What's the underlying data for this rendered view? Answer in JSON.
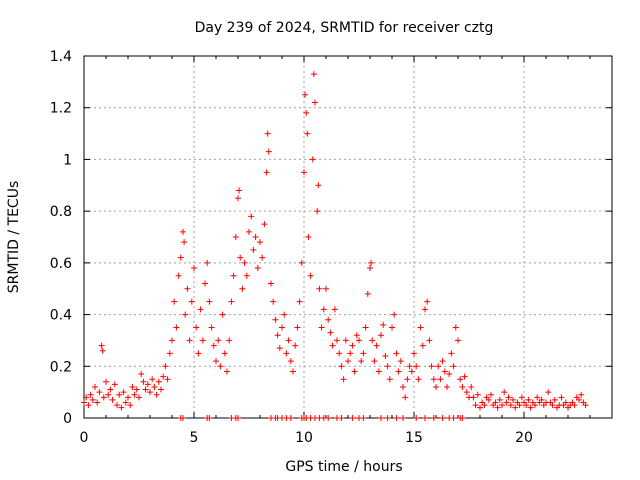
{
  "chart_data": {
    "type": "scatter",
    "title": "Day 239 of 2024, SRMTID for receiver cztg",
    "xlabel": "GPS time / hours",
    "ylabel": "SRMTID / TECUs",
    "xlim": [
      0,
      24
    ],
    "ylim": [
      0,
      1.4
    ],
    "xticks": [
      0,
      5,
      10,
      15,
      20
    ],
    "xtick_labels": [
      "0",
      "5",
      "10",
      "15",
      "20"
    ],
    "yticks": [
      0,
      0.2,
      0.4,
      0.6,
      0.8,
      1.0,
      1.2,
      1.4
    ],
    "ytick_labels": [
      "0",
      "0.2",
      "0.4",
      "0.6",
      "0.8",
      "1",
      "1.2",
      "1.4"
    ],
    "grid": true,
    "marker": "plus",
    "color": "#ff0000",
    "series": [
      {
        "name": "SRMTID",
        "points": [
          [
            0.0,
            0.06
          ],
          [
            0.1,
            0.08
          ],
          [
            0.2,
            0.05
          ],
          [
            0.3,
            0.09
          ],
          [
            0.4,
            0.07
          ],
          [
            0.5,
            0.12
          ],
          [
            0.6,
            0.06
          ],
          [
            0.7,
            0.1
          ],
          [
            0.8,
            0.28
          ],
          [
            0.85,
            0.26
          ],
          [
            0.9,
            0.08
          ],
          [
            1.0,
            0.14
          ],
          [
            1.1,
            0.09
          ],
          [
            1.2,
            0.11
          ],
          [
            1.3,
            0.07
          ],
          [
            1.4,
            0.13
          ],
          [
            1.5,
            0.05
          ],
          [
            1.6,
            0.09
          ],
          [
            1.7,
            0.04
          ],
          [
            1.8,
            0.1
          ],
          [
            1.9,
            0.06
          ],
          [
            2.0,
            0.08
          ],
          [
            2.1,
            0.05
          ],
          [
            2.2,
            0.12
          ],
          [
            2.3,
            0.09
          ],
          [
            2.4,
            0.11
          ],
          [
            2.5,
            0.08
          ],
          [
            2.6,
            0.17
          ],
          [
            2.7,
            0.14
          ],
          [
            2.8,
            0.11
          ],
          [
            2.9,
            0.13
          ],
          [
            3.0,
            0.1
          ],
          [
            3.1,
            0.15
          ],
          [
            3.2,
            0.12
          ],
          [
            3.3,
            0.09
          ],
          [
            3.4,
            0.14
          ],
          [
            3.5,
            0.11
          ],
          [
            3.6,
            0.16
          ],
          [
            3.7,
            0.2
          ],
          [
            3.8,
            0.15
          ],
          [
            3.9,
            0.25
          ],
          [
            4.0,
            0.3
          ],
          [
            4.1,
            0.45
          ],
          [
            4.2,
            0.35
          ],
          [
            4.3,
            0.55
          ],
          [
            4.4,
            0.62
          ],
          [
            4.5,
            0.72
          ],
          [
            4.55,
            0.68
          ],
          [
            4.6,
            0.4
          ],
          [
            4.7,
            0.5
          ],
          [
            4.8,
            0.3
          ],
          [
            4.9,
            0.45
          ],
          [
            5.0,
            0.58
          ],
          [
            5.1,
            0.35
          ],
          [
            5.2,
            0.25
          ],
          [
            5.3,
            0.42
          ],
          [
            5.4,
            0.3
          ],
          [
            5.5,
            0.52
          ],
          [
            5.6,
            0.6
          ],
          [
            5.7,
            0.45
          ],
          [
            5.8,
            0.35
          ],
          [
            5.9,
            0.28
          ],
          [
            6.0,
            0.22
          ],
          [
            6.1,
            0.3
          ],
          [
            6.2,
            0.2
          ],
          [
            6.3,
            0.4
          ],
          [
            6.4,
            0.25
          ],
          [
            6.5,
            0.18
          ],
          [
            6.6,
            0.3
          ],
          [
            6.7,
            0.45
          ],
          [
            6.8,
            0.55
          ],
          [
            6.9,
            0.7
          ],
          [
            7.0,
            0.85
          ],
          [
            7.05,
            0.88
          ],
          [
            7.1,
            0.62
          ],
          [
            7.2,
            0.5
          ],
          [
            7.3,
            0.6
          ],
          [
            7.4,
            0.55
          ],
          [
            7.5,
            0.72
          ],
          [
            7.6,
            0.78
          ],
          [
            7.7,
            0.65
          ],
          [
            7.8,
            0.7
          ],
          [
            7.9,
            0.58
          ],
          [
            8.0,
            0.68
          ],
          [
            8.1,
            0.62
          ],
          [
            8.2,
            0.75
          ],
          [
            8.3,
            0.95
          ],
          [
            8.35,
            1.1
          ],
          [
            8.4,
            1.03
          ],
          [
            8.5,
            0.52
          ],
          [
            8.6,
            0.45
          ],
          [
            8.7,
            0.38
          ],
          [
            8.8,
            0.32
          ],
          [
            8.9,
            0.27
          ],
          [
            9.0,
            0.35
          ],
          [
            9.1,
            0.4
          ],
          [
            9.2,
            0.25
          ],
          [
            9.3,
            0.3
          ],
          [
            9.4,
            0.22
          ],
          [
            9.5,
            0.18
          ],
          [
            9.6,
            0.28
          ],
          [
            9.7,
            0.35
          ],
          [
            9.8,
            0.45
          ],
          [
            9.9,
            0.6
          ],
          [
            10.0,
            0.95
          ],
          [
            10.05,
            1.25
          ],
          [
            10.1,
            1.18
          ],
          [
            10.15,
            1.1
          ],
          [
            10.2,
            0.7
          ],
          [
            10.3,
            0.55
          ],
          [
            10.4,
            1.0
          ],
          [
            10.45,
            1.33
          ],
          [
            10.5,
            1.22
          ],
          [
            10.6,
            0.8
          ],
          [
            10.65,
            0.9
          ],
          [
            10.7,
            0.5
          ],
          [
            10.8,
            0.35
          ],
          [
            10.9,
            0.42
          ],
          [
            11.0,
            0.5
          ],
          [
            11.1,
            0.38
          ],
          [
            11.2,
            0.33
          ],
          [
            11.3,
            0.28
          ],
          [
            11.4,
            0.42
          ],
          [
            11.5,
            0.3
          ],
          [
            11.6,
            0.25
          ],
          [
            11.7,
            0.2
          ],
          [
            11.8,
            0.15
          ],
          [
            11.9,
            0.3
          ],
          [
            12.0,
            0.22
          ],
          [
            12.1,
            0.25
          ],
          [
            12.2,
            0.28
          ],
          [
            12.3,
            0.18
          ],
          [
            12.4,
            0.32
          ],
          [
            12.5,
            0.3
          ],
          [
            12.6,
            0.22
          ],
          [
            12.7,
            0.25
          ],
          [
            12.8,
            0.35
          ],
          [
            12.9,
            0.48
          ],
          [
            13.0,
            0.58
          ],
          [
            13.05,
            0.6
          ],
          [
            13.1,
            0.3
          ],
          [
            13.2,
            0.22
          ],
          [
            13.3,
            0.28
          ],
          [
            13.4,
            0.18
          ],
          [
            13.5,
            0.32
          ],
          [
            13.6,
            0.36
          ],
          [
            13.7,
            0.24
          ],
          [
            13.8,
            0.2
          ],
          [
            13.9,
            0.15
          ],
          [
            14.0,
            0.35
          ],
          [
            14.1,
            0.4
          ],
          [
            14.2,
            0.25
          ],
          [
            14.3,
            0.18
          ],
          [
            14.4,
            0.22
          ],
          [
            14.5,
            0.12
          ],
          [
            14.6,
            0.08
          ],
          [
            14.7,
            0.15
          ],
          [
            14.8,
            0.2
          ],
          [
            14.9,
            0.18
          ],
          [
            15.0,
            0.25
          ],
          [
            15.1,
            0.2
          ],
          [
            15.2,
            0.15
          ],
          [
            15.3,
            0.35
          ],
          [
            15.4,
            0.28
          ],
          [
            15.5,
            0.42
          ],
          [
            15.6,
            0.45
          ],
          [
            15.7,
            0.3
          ],
          [
            15.8,
            0.2
          ],
          [
            15.9,
            0.15
          ],
          [
            16.0,
            0.12
          ],
          [
            16.1,
            0.2
          ],
          [
            16.2,
            0.15
          ],
          [
            16.3,
            0.22
          ],
          [
            16.4,
            0.18
          ],
          [
            16.5,
            0.12
          ],
          [
            16.6,
            0.17
          ],
          [
            16.7,
            0.25
          ],
          [
            16.8,
            0.2
          ],
          [
            16.9,
            0.35
          ],
          [
            17.0,
            0.3
          ],
          [
            17.1,
            0.15
          ],
          [
            17.2,
            0.12
          ],
          [
            17.3,
            0.16
          ],
          [
            17.4,
            0.1
          ],
          [
            17.5,
            0.08
          ],
          [
            17.6,
            0.12
          ],
          [
            17.7,
            0.08
          ],
          [
            17.8,
            0.05
          ],
          [
            17.9,
            0.09
          ],
          [
            18.0,
            0.04
          ],
          [
            18.1,
            0.06
          ],
          [
            18.2,
            0.05
          ],
          [
            18.3,
            0.08
          ],
          [
            18.4,
            0.07
          ],
          [
            18.5,
            0.09
          ],
          [
            18.6,
            0.05
          ],
          [
            18.7,
            0.06
          ],
          [
            18.8,
            0.04
          ],
          [
            18.9,
            0.07
          ],
          [
            19.0,
            0.05
          ],
          [
            19.1,
            0.1
          ],
          [
            19.2,
            0.06
          ],
          [
            19.3,
            0.08
          ],
          [
            19.4,
            0.05
          ],
          [
            19.5,
            0.07
          ],
          [
            19.6,
            0.04
          ],
          [
            19.7,
            0.06
          ],
          [
            19.8,
            0.05
          ],
          [
            19.9,
            0.08
          ],
          [
            20.0,
            0.06
          ],
          [
            20.1,
            0.05
          ],
          [
            20.2,
            0.07
          ],
          [
            20.3,
            0.04
          ],
          [
            20.4,
            0.06
          ],
          [
            20.5,
            0.05
          ],
          [
            20.6,
            0.08
          ],
          [
            20.7,
            0.06
          ],
          [
            20.8,
            0.07
          ],
          [
            20.9,
            0.05
          ],
          [
            21.0,
            0.06
          ],
          [
            21.1,
            0.1
          ],
          [
            21.2,
            0.06
          ],
          [
            21.3,
            0.05
          ],
          [
            21.4,
            0.07
          ],
          [
            21.5,
            0.04
          ],
          [
            21.6,
            0.05
          ],
          [
            21.7,
            0.08
          ],
          [
            21.8,
            0.05
          ],
          [
            21.9,
            0.06
          ],
          [
            22.0,
            0.04
          ],
          [
            22.1,
            0.05
          ],
          [
            22.2,
            0.06
          ],
          [
            22.3,
            0.05
          ],
          [
            22.4,
            0.08
          ],
          [
            22.5,
            0.07
          ],
          [
            22.6,
            0.09
          ],
          [
            22.7,
            0.06
          ],
          [
            22.8,
            0.05
          ],
          [
            4.4,
            0.0
          ],
          [
            4.5,
            0.0
          ],
          [
            5.6,
            0.0
          ],
          [
            5.7,
            0.0
          ],
          [
            6.7,
            0.0
          ],
          [
            6.9,
            0.0
          ],
          [
            7.0,
            0.0
          ],
          [
            8.5,
            0.0
          ],
          [
            8.7,
            0.0
          ],
          [
            8.8,
            0.0
          ],
          [
            9.0,
            0.0
          ],
          [
            9.2,
            0.0
          ],
          [
            9.4,
            0.0
          ],
          [
            9.9,
            0.0
          ],
          [
            10.0,
            0.0
          ],
          [
            10.1,
            0.0
          ],
          [
            10.3,
            0.0
          ],
          [
            10.5,
            0.0
          ],
          [
            10.7,
            0.0
          ],
          [
            10.9,
            0.0
          ],
          [
            11.1,
            0.0
          ],
          [
            11.5,
            0.0
          ],
          [
            11.7,
            0.0
          ],
          [
            12.2,
            0.0
          ],
          [
            12.5,
            0.0
          ],
          [
            12.7,
            0.0
          ],
          [
            13.5,
            0.0
          ],
          [
            13.8,
            0.0
          ],
          [
            14.2,
            0.0
          ],
          [
            14.5,
            0.0
          ],
          [
            15.1,
            0.0
          ],
          [
            15.5,
            0.0
          ],
          [
            15.9,
            0.0
          ],
          [
            16.3,
            0.0
          ],
          [
            16.6,
            0.0
          ],
          [
            16.8,
            0.0
          ],
          [
            17.1,
            0.0
          ],
          [
            17.2,
            0.0
          ]
        ]
      }
    ]
  }
}
